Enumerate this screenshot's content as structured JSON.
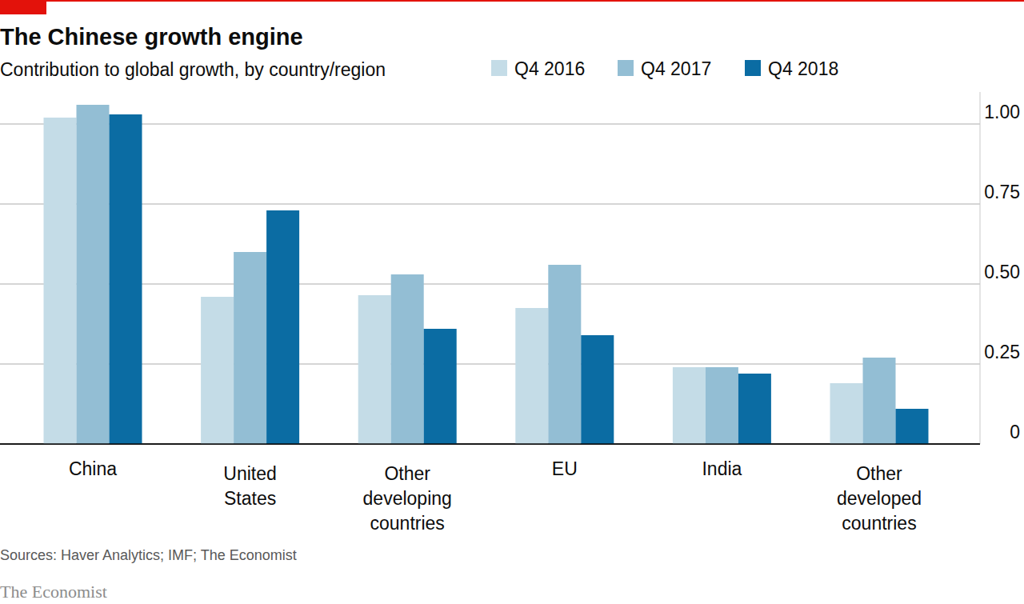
{
  "chart_data": {
    "type": "bar",
    "title": "The Chinese growth engine",
    "subtitle": "Contribution to global growth, by country/region",
    "source": "Sources: Haver Analytics; IMF; The Economist",
    "publisher": "The Economist",
    "categories": [
      "China",
      "United States",
      "Other developing countries",
      "EU",
      "India",
      "Other developed countries"
    ],
    "series": [
      {
        "name": "Q4 2016",
        "color": "#c4dce7",
        "values": [
          1.02,
          0.46,
          0.465,
          0.425,
          0.24,
          0.19
        ]
      },
      {
        "name": "Q4 2017",
        "color": "#93bed4",
        "values": [
          1.06,
          0.6,
          0.53,
          0.56,
          0.24,
          0.27
        ]
      },
      {
        "name": "Q4 2018",
        "color": "#0b6ca3",
        "values": [
          1.03,
          0.73,
          0.36,
          0.34,
          0.22,
          0.11
        ]
      }
    ],
    "ylim": [
      0,
      1.1
    ],
    "yticks": [
      0,
      0.25,
      {
        "value": 0.5,
        "label": "0.50"
      },
      0.75,
      {
        "value": 1,
        "label": "1.00"
      }
    ],
    "grid": true
  }
}
